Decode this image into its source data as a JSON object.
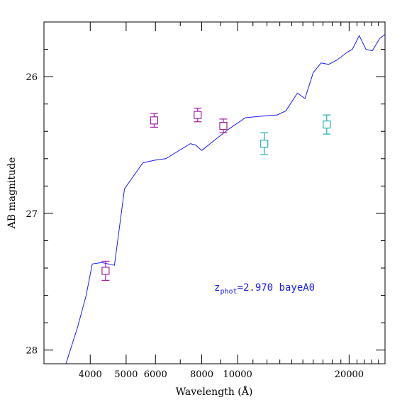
{
  "chart_data": {
    "type": "scatter",
    "xlabel": "Wavelength (Å)",
    "ylabel": "AB magnitude",
    "x_scale": "log",
    "xlim": [
      3000,
      25000
    ],
    "ylim": [
      28.1,
      25.6
    ],
    "y_inverted": true,
    "x_ticks": [
      {
        "value": 4000,
        "label": "4000"
      },
      {
        "value": 5000,
        "label": "5000"
      },
      {
        "value": 6000,
        "label": "6000"
      },
      {
        "value": 8000,
        "label": "8000"
      },
      {
        "value": 10000,
        "label": "10000"
      },
      {
        "value": 20000,
        "label": "20000"
      }
    ],
    "y_ticks": [
      {
        "value": 26,
        "label": "26"
      },
      {
        "value": 27,
        "label": "27"
      },
      {
        "value": 28,
        "label": "28"
      }
    ],
    "annotation": {
      "prefix": "z",
      "subscript": "phot",
      "text": "=2.970 bayeA0",
      "color": "#1a1aff"
    },
    "grid": false,
    "series": [
      {
        "kind": "line",
        "color": "#1a1aff",
        "points": [
          [
            3440,
            28.1
          ],
          [
            3700,
            27.83
          ],
          [
            3900,
            27.6
          ],
          [
            4050,
            27.37
          ],
          [
            4300,
            27.36
          ],
          [
            4650,
            27.38
          ],
          [
            4950,
            26.82
          ],
          [
            5550,
            26.63
          ],
          [
            6000,
            26.61
          ],
          [
            6400,
            26.6
          ],
          [
            7450,
            26.49
          ],
          [
            7700,
            26.5
          ],
          [
            8000,
            26.54
          ],
          [
            8800,
            26.45
          ],
          [
            9500,
            26.38
          ],
          [
            10500,
            26.3
          ],
          [
            11500,
            26.29
          ],
          [
            12800,
            26.28
          ],
          [
            13500,
            26.25
          ],
          [
            14500,
            26.12
          ],
          [
            15200,
            26.16
          ],
          [
            16000,
            25.97
          ],
          [
            16800,
            25.9
          ],
          [
            17600,
            25.91
          ],
          [
            18500,
            25.88
          ],
          [
            19800,
            25.82
          ],
          [
            20400,
            25.8
          ],
          [
            21300,
            25.7
          ],
          [
            22200,
            25.8
          ],
          [
            23100,
            25.81
          ],
          [
            24200,
            25.72
          ],
          [
            25000,
            25.69
          ]
        ]
      },
      {
        "kind": "points",
        "marker": "square",
        "color": "#a020a0",
        "points": [
          {
            "x": 4400,
            "y": 27.42,
            "yerr": 0.07
          },
          {
            "x": 5950,
            "y": 26.32,
            "yerr": 0.05
          },
          {
            "x": 7800,
            "y": 26.28,
            "yerr": 0.05
          },
          {
            "x": 9150,
            "y": 26.36,
            "yerr": 0.05
          }
        ]
      },
      {
        "kind": "points",
        "marker": "square",
        "color": "#20b0b0",
        "points": [
          {
            "x": 11800,
            "y": 26.49,
            "yerr": 0.08
          },
          {
            "x": 17400,
            "y": 26.35,
            "yerr": 0.07
          }
        ]
      }
    ]
  }
}
